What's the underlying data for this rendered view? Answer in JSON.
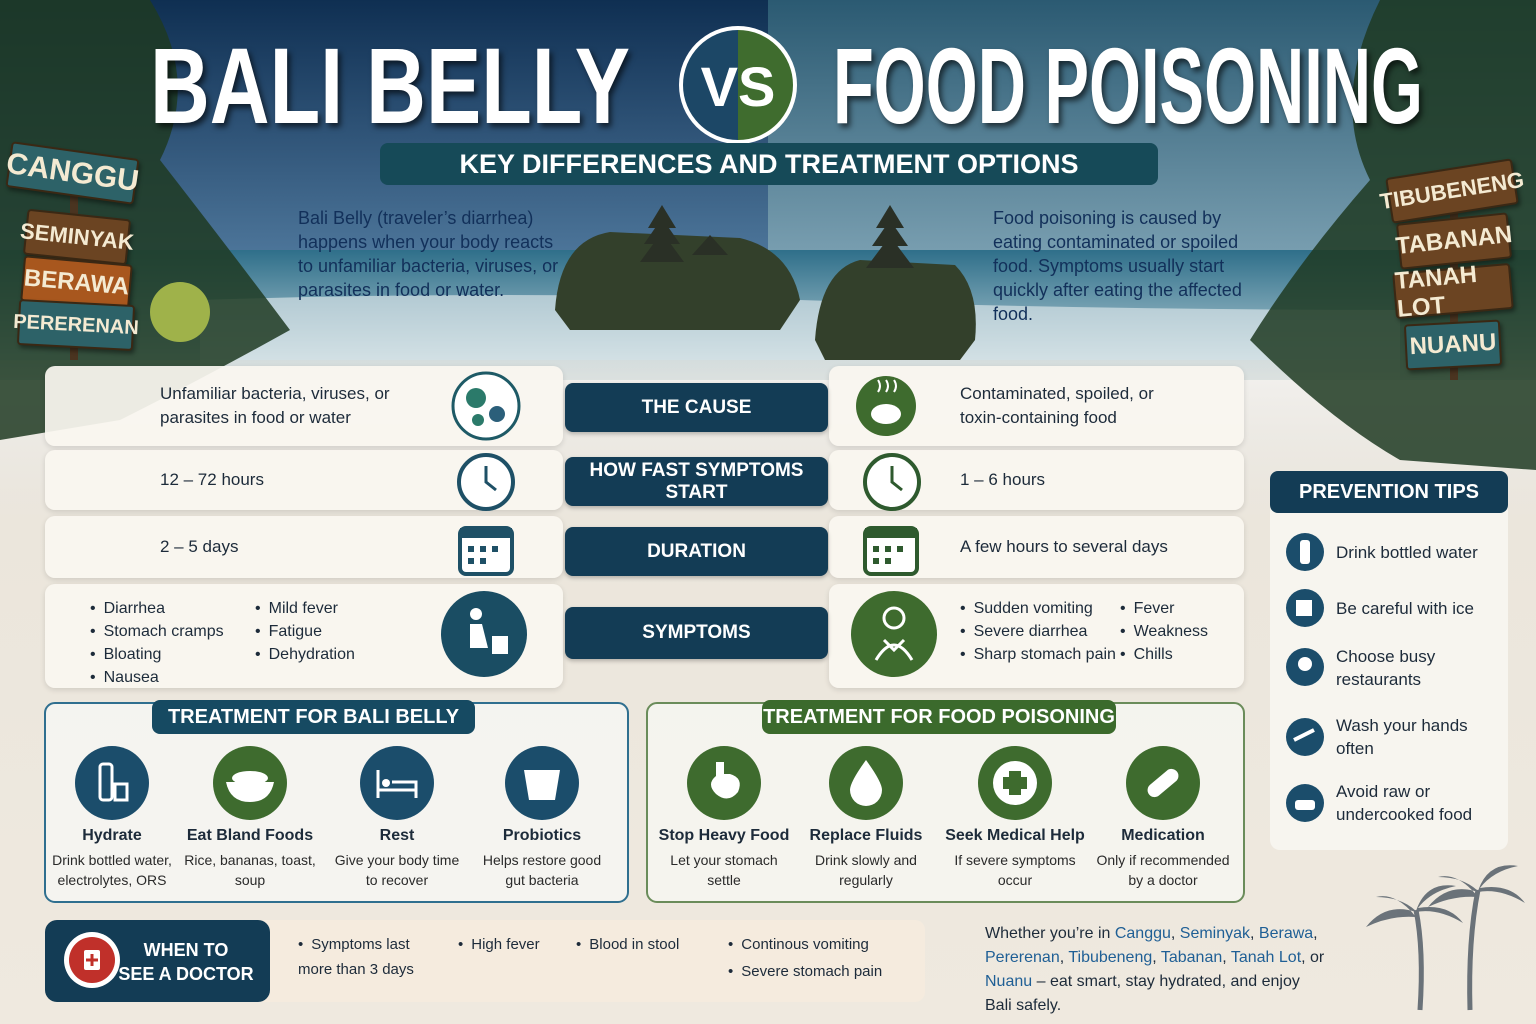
{
  "header": {
    "title_left": "BALI BELLY",
    "vs": "VS",
    "title_right": "FOOD POISONING",
    "subtitle": "KEY DIFFERENCES AND TREATMENT OPTIONS"
  },
  "signs_left": [
    "CANGGU",
    "SEMINYAK",
    "BERAWA",
    "PERERENAN"
  ],
  "signs_right": [
    "TIBUBENENG",
    "TABANAN",
    "TANAH LOT",
    "NUANU"
  ],
  "intro_left": "Bali Belly (traveler’s diarrhea) happens when your body reacts to unfamiliar bacteria, viruses, or parasites in food or water.",
  "intro_right": "Food poisoning is caused by eating contaminated or spoiled food. Symptoms usually start quickly after eating the affected food.",
  "comparison": [
    {
      "label": "THE CAUSE",
      "left": "Unfamiliar bacteria, viruses, or parasites in food or water",
      "right": "Contaminated, spoiled, or toxin-containing food"
    },
    {
      "label": "HOW FAST SYMPTOMS START",
      "left": "12 – 72 hours",
      "right": "1 – 6 hours"
    },
    {
      "label": "DURATION",
      "left": "2 – 5 days",
      "right": "A few hours to several days"
    }
  ],
  "symptoms": {
    "label": "SYMPTOMS",
    "left_columns": [
      [
        "Diarrhea",
        "Stomach cramps",
        "Bloating",
        "Nausea"
      ],
      [
        "Mild fever",
        "Fatigue",
        "Dehydration"
      ]
    ],
    "right_columns": [
      [
        "Sudden vomiting",
        "Severe diarrhea",
        "Sharp stomach pain"
      ],
      [
        "Fever",
        "Weakness",
        "Chills"
      ]
    ]
  },
  "treatment_bali_belly": {
    "title": "TREATMENT FOR BALI BELLY",
    "items": [
      {
        "name": "Hydrate",
        "desc": "Drink bottled water, electrolytes, ORS"
      },
      {
        "name": "Eat Bland Foods",
        "desc": "Rice, bananas, toast, soup"
      },
      {
        "name": "Rest",
        "desc": "Give your body time to recover"
      },
      {
        "name": "Probiotics",
        "desc": "Helps restore good gut bacteria"
      }
    ]
  },
  "treatment_food_poisoning": {
    "title": "TREATMENT FOR FOOD POISONING",
    "items": [
      {
        "name": "Stop Heavy Food",
        "desc": "Let your stomach settle"
      },
      {
        "name": "Replace Fluids",
        "desc": "Drink slowly and regularly"
      },
      {
        "name": "Seek Medical Help",
        "desc": "If severe symptoms occur"
      },
      {
        "name": "Medication",
        "desc": "Only if recommended by a doctor"
      }
    ]
  },
  "prevention": {
    "title": "PREVENTION TIPS",
    "tips": [
      "Drink bottled water",
      "Be careful with ice",
      "Choose busy restaurants",
      "Wash your hands often",
      "Avoid raw or undercooked food"
    ]
  },
  "doctor": {
    "title": "WHEN TO SEE A DOCTOR",
    "items": [
      "Symptoms last more than 3 days",
      "High fever",
      "Blood in stool",
      "Continous vomiting",
      "Severe stomach pain"
    ]
  },
  "footer": [
    {
      "text": "Whether you’re in "
    },
    {
      "text": "Canggu",
      "place": true
    },
    {
      "text": ", "
    },
    {
      "text": "Seminyak",
      "place": true
    },
    {
      "text": ", "
    },
    {
      "text": "Berawa",
      "place": true
    },
    {
      "text": ", "
    },
    {
      "text": "Pererenan",
      "place": true
    },
    {
      "text": ", "
    },
    {
      "text": "Tibubeneng",
      "place": true
    },
    {
      "text": ", "
    },
    {
      "text": "Tabanan",
      "place": true
    },
    {
      "text": ", "
    },
    {
      "text": "Tanah Lot",
      "place": true
    },
    {
      "text": ", or "
    },
    {
      "text": "Nuanu",
      "place": true
    },
    {
      "text": " – eat smart, stay hydrated, and enjoy Bali safely."
    }
  ]
}
